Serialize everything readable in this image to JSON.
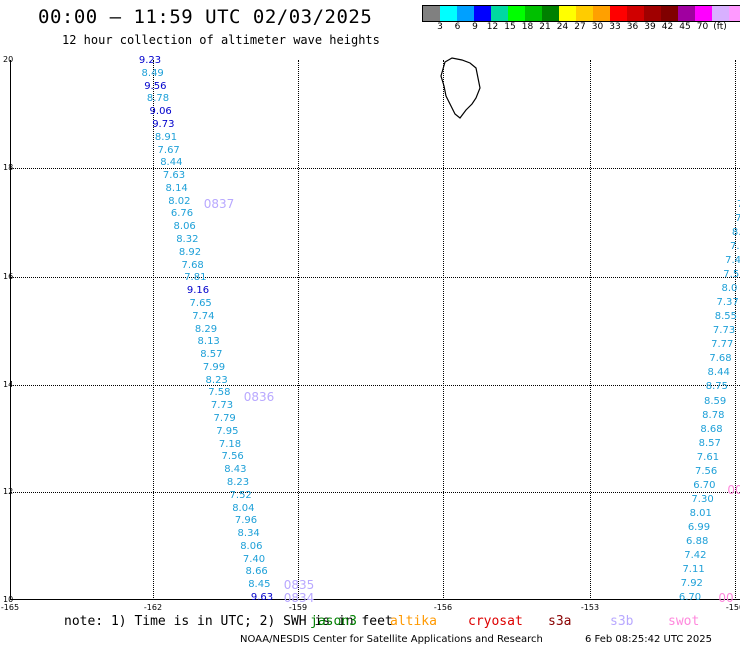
{
  "header": {
    "title": "00:00 – 11:59 UTC 02/03/2025",
    "subtitle": "12 hour collection of altimeter wave heights"
  },
  "colorbar": {
    "colors": [
      "#808080",
      "#00ffff",
      "#00a0ff",
      "#0000ff",
      "#00d8a0",
      "#00ff00",
      "#00c000",
      "#008000",
      "#ffff00",
      "#ffcc00",
      "#ffa000",
      "#ff0000",
      "#d00000",
      "#a00000",
      "#800000",
      "#a000a0",
      "#ff00ff",
      "#d8b0ff",
      "#ff99ff",
      "#000000"
    ],
    "labels": [
      "3",
      "6",
      "9",
      "12",
      "15",
      "18",
      "21",
      "24",
      "27",
      "30",
      "33",
      "36",
      "39",
      "42",
      "45",
      "70",
      "(ft)"
    ]
  },
  "axes": {
    "lat_labels": [
      "20",
      "18",
      "16",
      "14",
      "12",
      "10"
    ],
    "lon_labels": [
      "-165",
      "-162",
      "-159",
      "-156",
      "-153",
      "-150"
    ],
    "grid": true
  },
  "tracks": [
    {
      "id": "west",
      "color_default": "#1ea0d8",
      "values": [
        "9.23",
        "8.49",
        "9.56",
        "8.78",
        "9.06",
        "9.73",
        "8.91",
        "7.67",
        "8.44",
        "7.63",
        "8.14",
        "8.02",
        "6.76",
        "8.06",
        "8.32",
        "8.92",
        "7.68",
        "7.81",
        "9.16",
        "7.65",
        "7.74",
        "8.29",
        "8.13",
        "8.57",
        "7.99",
        "8.23",
        "7.58",
        "7.73",
        "7.79",
        "7.95",
        "7.18",
        "7.56",
        "8.43",
        "8.23",
        "7.52",
        "8.04",
        "7.96",
        "8.34",
        "8.06",
        "7.40",
        "8.66",
        "8.45",
        "9.63"
      ],
      "value_colors": {
        "0": "#0000cc",
        "2": "#0000cc",
        "4": "#0000cc",
        "5": "#0000cc",
        "18": "#0000cc",
        "42": "#0000cc"
      }
    },
    {
      "id": "east",
      "color_default": "#1ea0d8",
      "values": [
        "7",
        "7",
        "7",
        "8.",
        "7.",
        "7.4",
        "7.5",
        "8.0",
        "7.37",
        "8.55",
        "7.73",
        "7.77",
        "7.68",
        "8.44",
        "8.75",
        "8.59",
        "8.78",
        "8.68",
        "8.57",
        "7.61",
        "7.56",
        "6.70",
        "7.30",
        "8.01",
        "6.99",
        "6.88",
        "7.42",
        "7.11",
        "7.92",
        "6.70"
      ]
    }
  ],
  "pass_labels": [
    "0837",
    "0836",
    "0835",
    "0834",
    "00",
    "00"
  ],
  "footer": {
    "note": "note:  1) Time is in UTC; 2) SWH is in feet",
    "satellites": [
      {
        "name": "jason3",
        "color": "#008000"
      },
      {
        "name": "altika",
        "color": "#ff9900"
      },
      {
        "name": "cryosat",
        "color": "#dd0000"
      },
      {
        "name": "s3a",
        "color": "#880000"
      },
      {
        "name": "s3b",
        "color": "#b8a8ff"
      },
      {
        "name": "swot",
        "color": "#ff88dd"
      }
    ],
    "credit": "NOAA/NESDIS Center for Satellite Applications and Research",
    "stamp": "6 Feb 08:25:42 UTC 2025"
  }
}
